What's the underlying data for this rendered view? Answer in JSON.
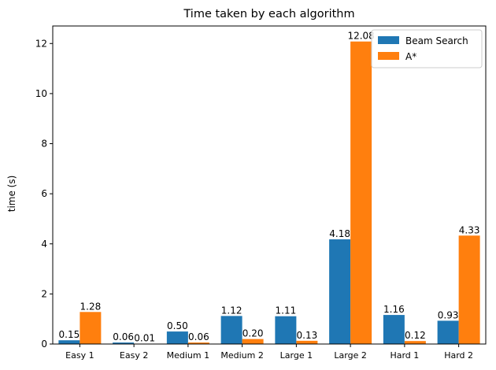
{
  "chart_data": {
    "type": "bar",
    "title": "Time taken by each algorithm",
    "xlabel": "",
    "ylabel": "time (s)",
    "ylim": [
      0,
      12.7
    ],
    "yticks": [
      0,
      2,
      4,
      6,
      8,
      10,
      12
    ],
    "grid": false,
    "legend_position": "top-right",
    "categories": [
      "Easy 1",
      "Easy 2",
      "Medium 1",
      "Medium 2",
      "Large 1",
      "Large 2",
      "Hard 1",
      "Hard 2"
    ],
    "series": [
      {
        "name": "Beam Search",
        "color": "#1f77b4",
        "values": [
          0.15,
          0.06,
          0.5,
          1.12,
          1.11,
          4.18,
          1.16,
          0.93
        ],
        "labels": [
          "0.15",
          "0.06",
          "0.50",
          "1.12",
          "1.11",
          "4.18",
          "1.16",
          "0.93"
        ]
      },
      {
        "name": "A*",
        "color": "#ff7f0e",
        "values": [
          1.28,
          0.01,
          0.06,
          0.2,
          0.13,
          12.08,
          0.12,
          4.33
        ],
        "labels": [
          "1.28",
          "0.01",
          "0.06",
          "0.20",
          "0.13",
          "12.08",
          "0.12",
          "4.33"
        ]
      }
    ]
  }
}
